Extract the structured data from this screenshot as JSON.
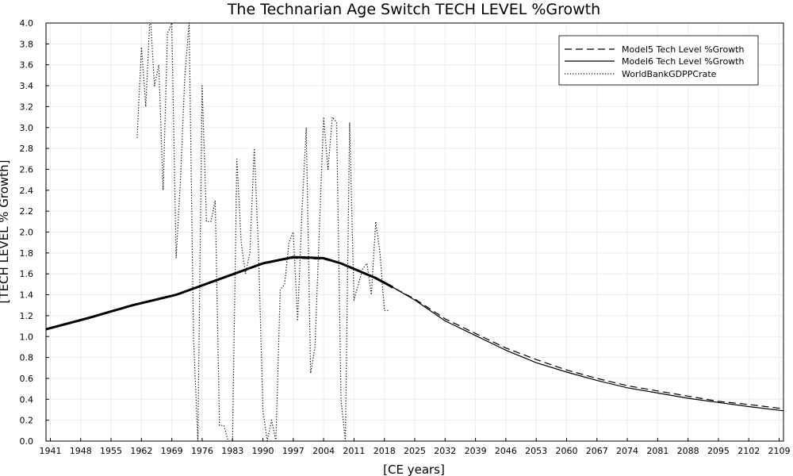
{
  "chart_data": {
    "type": "line",
    "title": "The Technarian Age Switch TECH LEVEL %Growth",
    "xlabel": "[CE years]",
    "ylabel": "[TECH LEVEL % Growth]",
    "xlim": [
      1940,
      2110
    ],
    "ylim": [
      0,
      4.0
    ],
    "grid": true,
    "legend_position": "top-right",
    "x_ticks": [
      1941,
      1948,
      1955,
      1962,
      1969,
      1976,
      1983,
      1990,
      1997,
      2004,
      2011,
      2018,
      2025,
      2032,
      2039,
      2046,
      2053,
      2060,
      2067,
      2074,
      2081,
      2088,
      2095,
      2102,
      2109
    ],
    "y_ticks": [
      "0.0",
      "0.2",
      "0.4",
      "0.6",
      "0.8",
      "1.0",
      "1.2",
      "1.4",
      "1.6",
      "1.8",
      "2.0",
      "2.2",
      "2.4",
      "2.6",
      "2.8",
      "3.0",
      "3.2",
      "3.4",
      "3.6",
      "3.8",
      "4.0"
    ],
    "series": [
      {
        "name": "Model5 Tech Level %Growth",
        "style": "dashed",
        "x": [
          1940,
          1950,
          1960,
          1970,
          1980,
          1990,
          1997,
          2004,
          2008,
          2012,
          2016,
          2020,
          2025,
          2032,
          2039,
          2046,
          2053,
          2060,
          2067,
          2074,
          2081,
          2088,
          2095,
          2102,
          2110
        ],
        "y": [
          1.07,
          1.18,
          1.3,
          1.4,
          1.55,
          1.7,
          1.75,
          1.74,
          1.7,
          1.63,
          1.56,
          1.47,
          1.36,
          1.17,
          1.03,
          0.89,
          0.78,
          0.68,
          0.6,
          0.53,
          0.48,
          0.43,
          0.38,
          0.35,
          0.31
        ]
      },
      {
        "name": "Model6 Tech Level %Growth",
        "style": "solid",
        "x": [
          1940,
          1950,
          1960,
          1970,
          1980,
          1990,
          1997,
          2004,
          2008,
          2012,
          2016,
          2020,
          2025,
          2032,
          2039,
          2046,
          2053,
          2060,
          2067,
          2074,
          2081,
          2088,
          2095,
          2102,
          2110
        ],
        "y": [
          1.07,
          1.18,
          1.3,
          1.4,
          1.55,
          1.7,
          1.76,
          1.75,
          1.7,
          1.63,
          1.56,
          1.47,
          1.35,
          1.15,
          1.01,
          0.87,
          0.75,
          0.66,
          0.58,
          0.51,
          0.46,
          0.41,
          0.37,
          0.33,
          0.29
        ]
      },
      {
        "name": "WorldBankGDPPCrate",
        "style": "dotted",
        "x": [
          1961,
          1962,
          1963,
          1964,
          1965,
          1966,
          1967,
          1968,
          1969,
          1970,
          1971,
          1972,
          1973,
          1974,
          1975,
          1976,
          1977,
          1978,
          1979,
          1980,
          1981,
          1982,
          1983,
          1984,
          1985,
          1986,
          1987,
          1988,
          1989,
          1990,
          1991,
          1992,
          1993,
          1994,
          1995,
          1996,
          1997,
          1998,
          1999,
          2000,
          2001,
          2002,
          2003,
          2004,
          2005,
          2006,
          2007,
          2008,
          2009,
          2010,
          2011,
          2012,
          2013,
          2014,
          2015,
          2016,
          2017,
          2018,
          2019
        ],
        "y": [
          2.9,
          3.77,
          3.2,
          4.1,
          3.4,
          3.6,
          2.4,
          3.9,
          4.0,
          1.75,
          2.5,
          3.5,
          4.0,
          1.0,
          0.0,
          3.4,
          2.1,
          2.1,
          2.3,
          0.15,
          0.15,
          0.0,
          0.0,
          2.7,
          1.9,
          1.6,
          1.8,
          2.8,
          1.8,
          0.3,
          0.0,
          0.2,
          0.0,
          1.45,
          1.5,
          1.9,
          2.0,
          1.15,
          2.2,
          3.0,
          0.65,
          0.9,
          2.0,
          3.1,
          2.6,
          3.1,
          3.05,
          0.4,
          0.0,
          3.05,
          1.35,
          1.5,
          1.65,
          1.7,
          1.4,
          2.1,
          1.8,
          1.25,
          1.25
        ]
      }
    ]
  }
}
